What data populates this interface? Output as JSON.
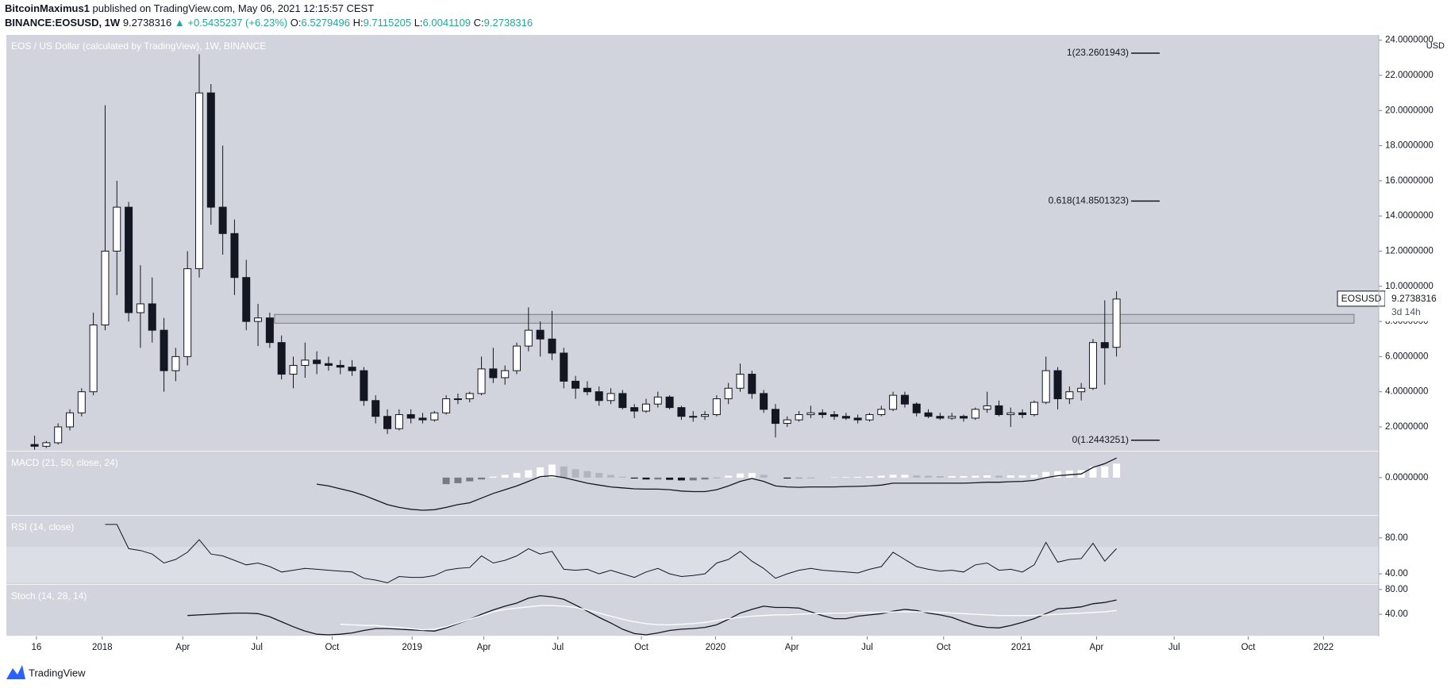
{
  "header": {
    "author": "BitcoinMaximus1",
    "published": "published on TradingView.com, May 06, 2021 12:15:57 CEST",
    "symbol": "BINANCE:EOSUSD, 1W",
    "last": "9.2738316",
    "change": "▲ +0.5435237 (+6.23%)",
    "ohlc": [
      {
        "label": "O:",
        "value": "6.5279496"
      },
      {
        "label": "H:",
        "value": "9.7115205"
      },
      {
        "label": "L:",
        "value": "6.0041109"
      },
      {
        "label": "C:",
        "value": "9.2738316"
      }
    ]
  },
  "footer": "TradingView",
  "chart_data": [
    {
      "type": "candlestick",
      "title": "EOS / US Dollar (calculated by TradingView), 1W, BINANCE",
      "unit": "USD",
      "up_color": "#ffffff",
      "down_color": "#131722",
      "open": [
        1.0,
        0.9,
        1.1,
        2.0,
        2.8,
        4.0,
        7.8,
        12.0,
        14.5,
        8.5,
        9.0,
        7.5,
        5.2,
        6.0,
        11.0,
        21.0,
        14.5,
        13.0,
        10.5,
        8.0,
        8.2,
        6.8,
        5.0,
        5.5,
        5.8,
        5.6,
        5.5,
        5.4,
        5.2,
        3.5,
        2.6,
        1.9,
        2.7,
        2.5,
        2.4,
        2.8,
        3.6,
        3.6,
        3.9,
        5.3,
        4.8,
        5.2,
        6.6,
        7.5,
        7.0,
        6.2,
        4.6,
        4.2,
        4.0,
        3.5,
        3.9,
        3.1,
        2.9,
        3.3,
        3.7,
        3.1,
        2.6,
        2.6,
        2.7,
        3.6,
        4.2,
        5.0,
        3.9,
        3.0,
        2.2,
        2.4,
        2.7,
        2.8,
        2.7,
        2.6,
        2.5,
        2.4,
        2.7,
        3.0,
        3.8,
        3.3,
        2.8,
        2.6,
        2.5,
        2.6,
        2.5,
        3.0,
        3.2,
        2.7,
        2.8,
        2.7,
        3.4,
        5.2,
        3.6,
        4.0,
        4.2,
        6.8,
        6.5279496
      ],
      "high": [
        1.5,
        1.2,
        2.2,
        3.0,
        4.2,
        8.5,
        20.3,
        16.0,
        14.8,
        11.2,
        10.5,
        8.2,
        6.5,
        12.0,
        23.2,
        21.5,
        18.0,
        13.8,
        11.5,
        9.0,
        8.5,
        7.2,
        6.0,
        6.8,
        6.3,
        6.0,
        5.8,
        5.8,
        5.4,
        3.8,
        3.0,
        3.0,
        3.0,
        2.8,
        2.9,
        3.8,
        3.9,
        4.0,
        6.0,
        6.5,
        5.5,
        6.8,
        8.8,
        8.0,
        8.6,
        6.5,
        4.9,
        4.6,
        4.3,
        4.2,
        4.1,
        3.3,
        3.6,
        4.0,
        3.8,
        3.2,
        2.9,
        2.9,
        3.8,
        4.5,
        5.6,
        5.2,
        4.1,
        3.3,
        2.6,
        2.9,
        3.2,
        3.0,
        2.9,
        2.8,
        2.7,
        2.8,
        3.2,
        4.0,
        4.0,
        3.4,
        3.0,
        2.8,
        2.8,
        2.7,
        3.1,
        4.0,
        3.5,
        3.1,
        3.0,
        3.5,
        6.0,
        5.4,
        4.3,
        4.5,
        7.0,
        9.2,
        9.7115205
      ],
      "low": [
        0.7,
        0.8,
        1.0,
        1.8,
        2.6,
        3.8,
        7.5,
        9.5,
        8.0,
        6.5,
        6.8,
        4.0,
        4.6,
        5.5,
        10.5,
        13.5,
        11.8,
        9.5,
        7.5,
        6.6,
        6.5,
        4.7,
        4.2,
        4.8,
        5.0,
        5.2,
        5.0,
        4.9,
        3.2,
        2.2,
        1.6,
        1.8,
        2.2,
        2.2,
        2.3,
        2.7,
        3.3,
        3.4,
        3.8,
        4.5,
        4.4,
        5.0,
        6.3,
        6.0,
        5.8,
        4.2,
        3.6,
        3.8,
        3.2,
        3.3,
        3.0,
        2.5,
        2.8,
        3.1,
        3.0,
        2.4,
        2.3,
        2.4,
        2.6,
        3.3,
        4.0,
        3.6,
        2.8,
        1.4,
        2.0,
        2.3,
        2.5,
        2.5,
        2.4,
        2.4,
        2.2,
        2.3,
        2.6,
        2.9,
        3.1,
        2.6,
        2.5,
        2.4,
        2.4,
        2.3,
        2.4,
        2.8,
        2.6,
        2.0,
        2.5,
        2.6,
        3.3,
        3.0,
        3.3,
        3.5,
        4.1,
        4.4,
        6.0041109
      ],
      "close": [
        0.9,
        1.1,
        2.0,
        2.8,
        4.0,
        7.8,
        12.0,
        14.5,
        8.5,
        9.0,
        7.5,
        5.2,
        6.0,
        11.0,
        21.0,
        14.5,
        13.0,
        10.5,
        8.0,
        8.2,
        6.8,
        5.0,
        5.5,
        5.8,
        5.6,
        5.5,
        5.4,
        5.2,
        3.5,
        2.6,
        1.9,
        2.7,
        2.5,
        2.4,
        2.8,
        3.6,
        3.6,
        3.9,
        5.3,
        4.8,
        5.2,
        6.6,
        7.5,
        7.0,
        6.2,
        4.6,
        4.2,
        4.0,
        3.5,
        3.9,
        3.1,
        2.9,
        3.3,
        3.7,
        3.1,
        2.6,
        2.6,
        2.7,
        3.6,
        4.2,
        5.0,
        3.9,
        3.0,
        2.2,
        2.4,
        2.7,
        2.8,
        2.7,
        2.6,
        2.5,
        2.4,
        2.7,
        3.0,
        3.8,
        3.3,
        2.8,
        2.6,
        2.5,
        2.6,
        2.5,
        3.0,
        3.2,
        2.7,
        2.8,
        2.7,
        3.4,
        5.2,
        3.6,
        4.0,
        4.2,
        6.8,
        6.5,
        9.2738316
      ],
      "xlim": [
        -2.4,
        114.3
      ],
      "xticks": [
        {
          "value": 0.16,
          "label": "16"
        },
        {
          "value": 5.75,
          "label": "2018"
        },
        {
          "value": 12.6,
          "label": "Apr"
        },
        {
          "value": 18.9,
          "label": "Jul"
        },
        {
          "value": 25.3,
          "label": "Oct"
        },
        {
          "value": 32.1,
          "label": "2019"
        },
        {
          "value": 38.2,
          "label": "Apr"
        },
        {
          "value": 44.5,
          "label": "Jul"
        },
        {
          "value": 51.6,
          "label": "Oct"
        },
        {
          "value": 57.9,
          "label": "2020"
        },
        {
          "value": 64.4,
          "label": "Apr"
        },
        {
          "value": 70.8,
          "label": "Jul"
        },
        {
          "value": 77.3,
          "label": "Oct"
        },
        {
          "value": 83.9,
          "label": "2021"
        },
        {
          "value": 90.3,
          "label": "Apr"
        },
        {
          "value": 96.9,
          "label": "Jul"
        },
        {
          "value": 103.2,
          "label": "Oct"
        },
        {
          "value": 109.6,
          "label": "2022"
        }
      ],
      "ylim": [
        0.6,
        24.3
      ],
      "yticks": [
        {
          "value": 2,
          "label": "2.0000000"
        },
        {
          "value": 4,
          "label": "4.0000000"
        },
        {
          "value": 6,
          "label": "6.0000000"
        },
        {
          "value": 8,
          "label": "8.0000000"
        },
        {
          "value": 10,
          "label": "10.0000000"
        },
        {
          "value": 12,
          "label": "12.0000000"
        },
        {
          "value": 14,
          "label": "14.0000000"
        },
        {
          "value": 16,
          "label": "16.0000000"
        },
        {
          "value": 18,
          "label": "18.0000000"
        },
        {
          "value": 20,
          "label": "20.0000000"
        },
        {
          "value": 22,
          "label": "22.0000000"
        },
        {
          "value": 24,
          "label": "24.0000000"
        }
      ],
      "levels": [
        {
          "label": "1(23.2601943)",
          "value": 23.2601943
        },
        {
          "label": "0.618(14.8501323)",
          "value": 14.8501323
        },
        {
          "label": "0(1.2443251)",
          "value": 1.2443251
        }
      ],
      "zone": {
        "low": 7.9,
        "high": 8.4,
        "start": 20.4,
        "end": 112.2
      },
      "last_price": {
        "symbol": "EOSUSD",
        "value": 9.2738316,
        "countdown": "3d 14h"
      }
    },
    {
      "type": "macd",
      "title": "MACD (21, 50, close, 24)",
      "line_color": "#131722",
      "histogram_colors": [
        "#ffffff",
        "#b2b5be",
        "#787b86",
        "#131722"
      ],
      "line": [
        null,
        null,
        null,
        null,
        null,
        null,
        null,
        null,
        null,
        null,
        null,
        null,
        null,
        null,
        null,
        null,
        null,
        null,
        null,
        null,
        null,
        null,
        null,
        null,
        -0.35,
        -0.45,
        -0.6,
        -0.75,
        -0.95,
        -1.2,
        -1.45,
        -1.6,
        -1.7,
        -1.75,
        -1.72,
        -1.6,
        -1.45,
        -1.35,
        -1.1,
        -0.85,
        -0.65,
        -0.45,
        -0.2,
        0.05,
        0.1,
        0.0,
        -0.15,
        -0.3,
        -0.4,
        -0.5,
        -0.55,
        -0.6,
        -0.62,
        -0.62,
        -0.65,
        -0.72,
        -0.75,
        -0.75,
        -0.65,
        -0.45,
        -0.2,
        -0.05,
        -0.2,
        -0.45,
        -0.5,
        -0.52,
        -0.5,
        -0.5,
        -0.5,
        -0.48,
        -0.47,
        -0.45,
        -0.4,
        -0.3,
        -0.3,
        -0.3,
        -0.3,
        -0.3,
        -0.3,
        -0.3,
        -0.28,
        -0.25,
        -0.25,
        -0.22,
        -0.2,
        -0.15,
        0.0,
        0.1,
        0.15,
        0.2,
        0.55,
        0.75,
        1.05
      ],
      "histogram": [
        null,
        null,
        null,
        null,
        null,
        null,
        null,
        null,
        null,
        null,
        null,
        null,
        null,
        null,
        null,
        null,
        null,
        null,
        null,
        null,
        null,
        null,
        null,
        null,
        null,
        null,
        null,
        null,
        null,
        null,
        null,
        null,
        null,
        null,
        null,
        -0.35,
        -0.3,
        -0.2,
        -0.1,
        0.05,
        0.15,
        0.25,
        0.4,
        0.55,
        0.7,
        0.6,
        0.45,
        0.35,
        0.25,
        0.15,
        0.05,
        -0.05,
        -0.1,
        -0.1,
        -0.12,
        -0.15,
        -0.15,
        -0.1,
        -0.02,
        0.1,
        0.22,
        0.25,
        0.15,
        0.0,
        -0.05,
        -0.03,
        -0.02,
        0.0,
        0.02,
        0.03,
        0.04,
        0.06,
        0.1,
        0.15,
        0.15,
        0.12,
        0.1,
        0.08,
        0.08,
        0.08,
        0.1,
        0.12,
        0.1,
        0.12,
        0.12,
        0.15,
        0.3,
        0.35,
        0.38,
        0.4,
        0.6,
        0.6,
        0.75
      ],
      "ylim": [
        -2.05,
        1.4
      ],
      "yticks": [
        {
          "value": 0,
          "label": "0.0000000"
        }
      ]
    },
    {
      "type": "rsi",
      "title": "RSI (14, close)",
      "line_color": "#131722",
      "band": [
        30,
        70
      ],
      "band_color": "#dcdee6",
      "values": [
        null,
        null,
        null,
        null,
        null,
        null,
        95,
        95,
        68,
        66,
        62,
        52,
        56,
        64,
        78,
        62,
        60,
        55,
        50,
        52,
        48,
        42,
        44,
        46,
        45,
        44,
        43,
        42,
        35,
        33,
        30,
        37,
        36,
        36,
        38,
        44,
        46,
        47,
        60,
        52,
        55,
        60,
        68,
        62,
        65,
        45,
        44,
        45,
        40,
        44,
        40,
        36,
        42,
        46,
        40,
        37,
        38,
        40,
        52,
        56,
        65,
        54,
        46,
        35,
        40,
        44,
        46,
        44,
        43,
        42,
        41,
        45,
        48,
        64,
        56,
        48,
        45,
        43,
        44,
        42,
        50,
        52,
        44,
        45,
        42,
        50,
        75,
        53,
        56,
        57,
        74,
        54,
        68
      ],
      "ylim": [
        27.7,
        104.6
      ],
      "yticks": [
        {
          "value": 40,
          "label": "40.00"
        },
        {
          "value": 80,
          "label": "80.00"
        }
      ]
    },
    {
      "type": "stoch",
      "title": "Stoch (14, 28, 14)",
      "series": [
        {
          "color": "#131722",
          "values": [
            null,
            null,
            null,
            null,
            null,
            null,
            null,
            null,
            null,
            null,
            null,
            null,
            null,
            38,
            39,
            40,
            41,
            42,
            42,
            41,
            36,
            28,
            20,
            13,
            8,
            7,
            8,
            10,
            14,
            17,
            17,
            16,
            15,
            14,
            13,
            18,
            25,
            32,
            40,
            47,
            53,
            58,
            66,
            70,
            68,
            64,
            55,
            45,
            35,
            26,
            16,
            9,
            7,
            10,
            14,
            16,
            17,
            19,
            23,
            32,
            42,
            48,
            53,
            51,
            51,
            50,
            44,
            38,
            33,
            33,
            37,
            39,
            41,
            45,
            48,
            46,
            42,
            39,
            35,
            28,
            22,
            19,
            18,
            22,
            27,
            33,
            41,
            49,
            50,
            52,
            57,
            59,
            63
          ]
        },
        {
          "color": "#ffffff",
          "values": [
            null,
            null,
            null,
            null,
            null,
            null,
            null,
            null,
            null,
            null,
            null,
            null,
            null,
            null,
            null,
            null,
            null,
            null,
            null,
            null,
            null,
            null,
            null,
            null,
            null,
            null,
            24,
            23,
            22,
            22,
            20,
            19,
            17,
            15,
            16,
            20,
            26,
            32,
            38,
            44,
            48,
            50,
            52,
            54,
            54,
            53,
            51,
            47,
            42,
            37,
            32,
            28,
            25,
            23,
            23,
            24,
            25,
            27,
            30,
            33,
            35,
            37,
            38,
            39,
            39,
            40,
            41,
            41,
            42,
            42,
            43,
            43,
            43,
            44,
            44,
            44,
            44,
            43,
            42,
            41,
            40,
            39,
            38,
            38,
            38,
            38,
            39,
            40,
            41,
            42,
            43,
            44,
            46
          ]
        }
      ],
      "ylim": [
        4.4,
        87.4
      ],
      "yticks": [
        {
          "value": 40,
          "label": "40.00"
        },
        {
          "value": 80,
          "label": "80.00"
        }
      ]
    }
  ]
}
